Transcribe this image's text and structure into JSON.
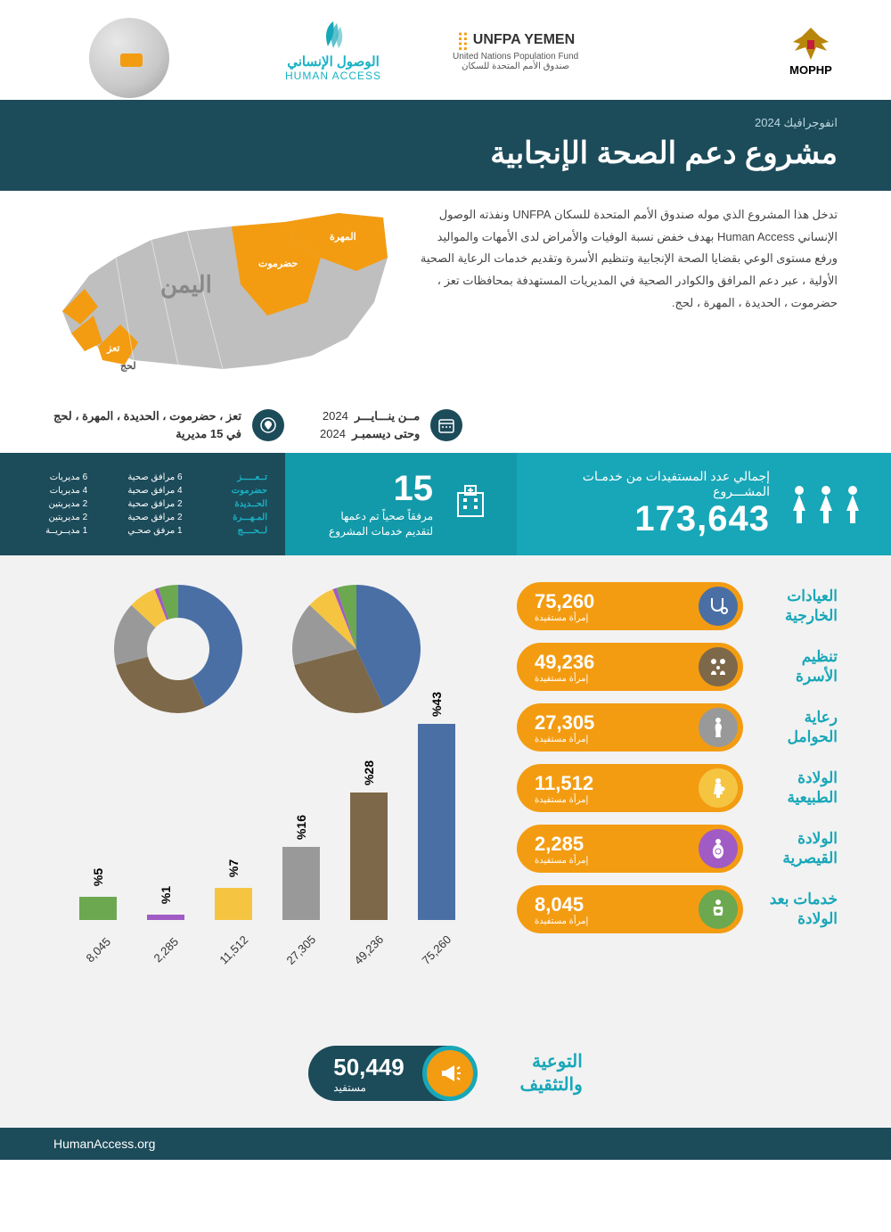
{
  "header": {
    "mophp": "MOPHP",
    "unfpa_main": "UNFPA YEMEN",
    "unfpa_sub_en": "United Nations Population Fund",
    "unfpa_sub_ar": "صندوق الأمم المتحدة للسكان",
    "ha_ar": "الوصول الإنساني",
    "ha_en": "HUMAN ACCESS"
  },
  "title": {
    "small": "انفوجرافيك 2024",
    "main": "مشروع دعم الصحة الإنجابية"
  },
  "description": "تدخل هذا المشروع الذي موله صندوق الأمم المتحدة للسكان UNFPA ونفذته الوصول الإنساني Human Access بهدف خفض نسبة الوفيات والأمراض لدى الأمهات والمواليد ورفع مستوى الوعي بقضايا الصحة الإنجابية وتنظيم الأسرة وتقديم خدمات الرعاية الصحية الأولية ، عبر دعم المرافق والكوادر الصحية في المديريات المستهدفة بمحافظات تعز ، حضرموت ، الحديدة ، المهرة ، لحج.",
  "map": {
    "country_label": "اليمن",
    "gov_mahra": "المهرة",
    "gov_hadramout": "حضرموت",
    "gov_taiz": "تعز",
    "gov_lahj": "لحج",
    "highlight_color": "#f39c12",
    "base_color": "#bfbfbf"
  },
  "meta": {
    "date_from_label": "مــن ينـــايـــر",
    "date_from_year": "2024",
    "date_to_label": "وحتى ديسمبـر",
    "date_to_year": "2024",
    "loc_line1": "تعز ، حضرموت ، الحديدة ، المهرة ، لحج",
    "loc_line2": "في 15 مديرية"
  },
  "totals": {
    "beneficiaries_label": "إجمالي عدد المستفيدات من خدمـات المشـــروع",
    "beneficiaries_value": "173,643",
    "facilities_value": "15",
    "facilities_label": "مرفقاً صحياً تم دعمها لتقديم خدمات المشروع"
  },
  "facilities_breakdown": [
    {
      "gov": "تــعـــــز",
      "fac": "6 مرافق صحية",
      "dist": "6 مديريات"
    },
    {
      "gov": "حضرموت",
      "fac": "4 مرافق صحية",
      "dist": "4 مديريات"
    },
    {
      "gov": "الحــديدة",
      "fac": "2 مرافق صحية",
      "dist": "2 مديريتين"
    },
    {
      "gov": "المـهـــرة",
      "fac": "2 مرافق صحية",
      "dist": "2 مديريتين"
    },
    {
      "gov": "لــحــــج",
      "fac": "1 مرفق صحـي",
      "dist": "1 مديــريــة"
    }
  ],
  "services": [
    {
      "title": "العيادات الخارجية",
      "value": "75,260",
      "sub": "إمرأة مستفيدة",
      "icon_bg": "#4a6fa5",
      "glyph": "stethoscope"
    },
    {
      "title": "تنظيم الأسرة",
      "value": "49,236",
      "sub": "إمرأة مستفيدة",
      "icon_bg": "#7d6849",
      "glyph": "family"
    },
    {
      "title": "رعاية الحوامل",
      "value": "27,305",
      "sub": "إمرأة مستفيدة",
      "icon_bg": "#999999",
      "glyph": "pregnant"
    },
    {
      "title": "الولادة الطبيعية",
      "value": "11,512",
      "sub": "إمرأة مستفيدة",
      "icon_bg": "#f5c542",
      "glyph": "birth"
    },
    {
      "title": "الولادة القيصرية",
      "value": "2,285",
      "sub": "إمرأة مستفيدة",
      "icon_bg": "#a05bc4",
      "glyph": "csection"
    },
    {
      "title": "خدمات بعد الولادة",
      "value": "8,045",
      "sub": "إمرأة مستفيدة",
      "icon_bg": "#6ba84f",
      "glyph": "postnatal"
    }
  ],
  "pill_color": "#f39c12",
  "bar_chart": {
    "max_pct": 43,
    "bars": [
      {
        "value": "8,045",
        "pct": 5,
        "pct_label": "%5",
        "color": "#6ba84f"
      },
      {
        "value": "2,285",
        "pct": 1,
        "pct_label": "%1",
        "color": "#a05bc4"
      },
      {
        "value": "11,512",
        "pct": 7,
        "pct_label": "%7",
        "color": "#f5c542"
      },
      {
        "value": "27,305",
        "pct": 16,
        "pct_label": "%16",
        "color": "#999999"
      },
      {
        "value": "49,236",
        "pct": 28,
        "pct_label": "%28",
        "color": "#7d6849"
      },
      {
        "value": "75,260",
        "pct": 43,
        "pct_label": "%43",
        "color": "#4a6fa5"
      }
    ]
  },
  "pie": {
    "slices": [
      {
        "pct": 43,
        "color": "#4a6fa5"
      },
      {
        "pct": 28,
        "color": "#7d6849"
      },
      {
        "pct": 16,
        "color": "#999999"
      },
      {
        "pct": 7,
        "color": "#f5c542"
      },
      {
        "pct": 1,
        "color": "#a05bc4"
      },
      {
        "pct": 5,
        "color": "#6ba84f"
      }
    ]
  },
  "awareness": {
    "title": "التوعية والتثقيف",
    "value": "50,449",
    "sub": "مستفيد"
  },
  "footer_url": "HumanAccess.org",
  "colors": {
    "teal": "#17a7b8",
    "dark_teal": "#1c4b5a",
    "orange": "#f39c12"
  }
}
